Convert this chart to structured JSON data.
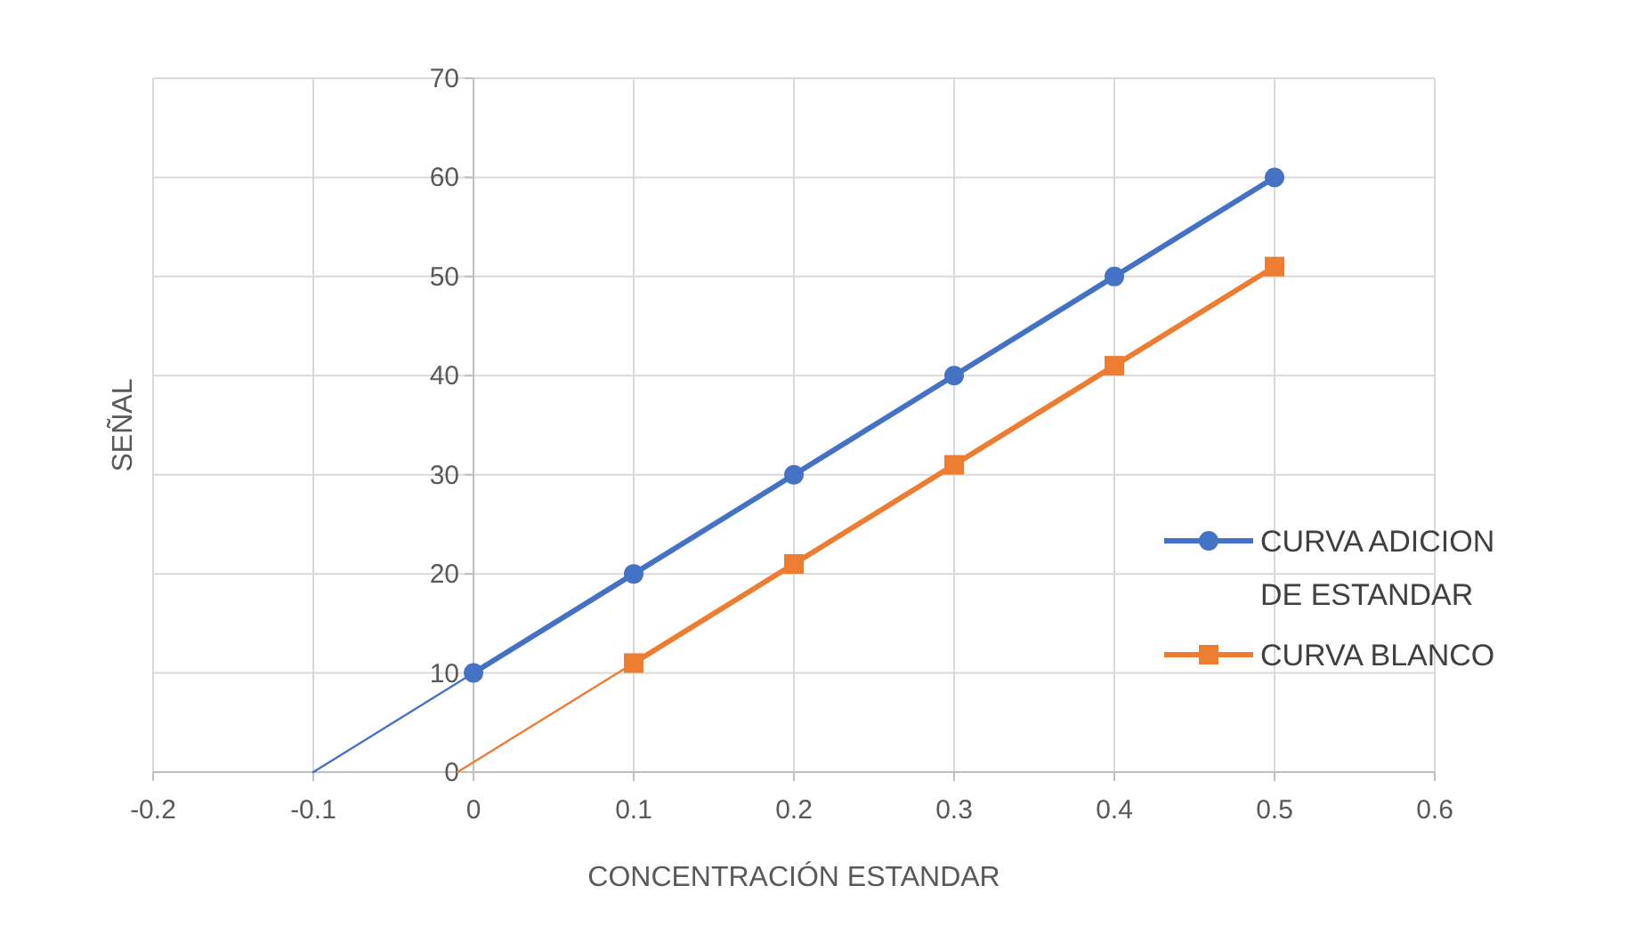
{
  "chart_data": {
    "type": "line",
    "xlabel": "CONCENTRACIÓN ESTANDAR",
    "ylabel": "SEÑAL",
    "xlim": [
      -0.2,
      0.6
    ],
    "xticks": [
      -0.2,
      -0.1,
      0,
      0.1,
      0.2,
      0.3,
      0.4,
      0.5,
      0.6
    ],
    "ylim": [
      0,
      70
    ],
    "yticks": [
      0,
      10,
      20,
      30,
      40,
      50,
      60,
      70
    ],
    "grid": true,
    "legend": "right",
    "series": [
      {
        "name": "CURVA ADICION DE ESTANDAR",
        "color": "#4472c4",
        "marker": "circle",
        "x": [
          0,
          0.1,
          0.2,
          0.3,
          0.4,
          0.5
        ],
        "values": [
          10,
          20,
          30,
          40,
          50,
          60
        ]
      },
      {
        "name": "CURVA BLANCO",
        "color": "#ed7d31",
        "marker": "square",
        "x": [
          0.1,
          0.2,
          0.3,
          0.4,
          0.5
        ],
        "values": [
          11,
          21,
          31,
          41,
          51
        ]
      },
      {
        "color": "#4472c4",
        "marker": "none",
        "x": [
          -0.1,
          0.5
        ],
        "values": [
          0,
          60
        ]
      },
      {
        "color": "#ed7d31",
        "marker": "none",
        "x": [
          -0.01,
          0.5
        ],
        "values": [
          0,
          51
        ]
      }
    ]
  }
}
